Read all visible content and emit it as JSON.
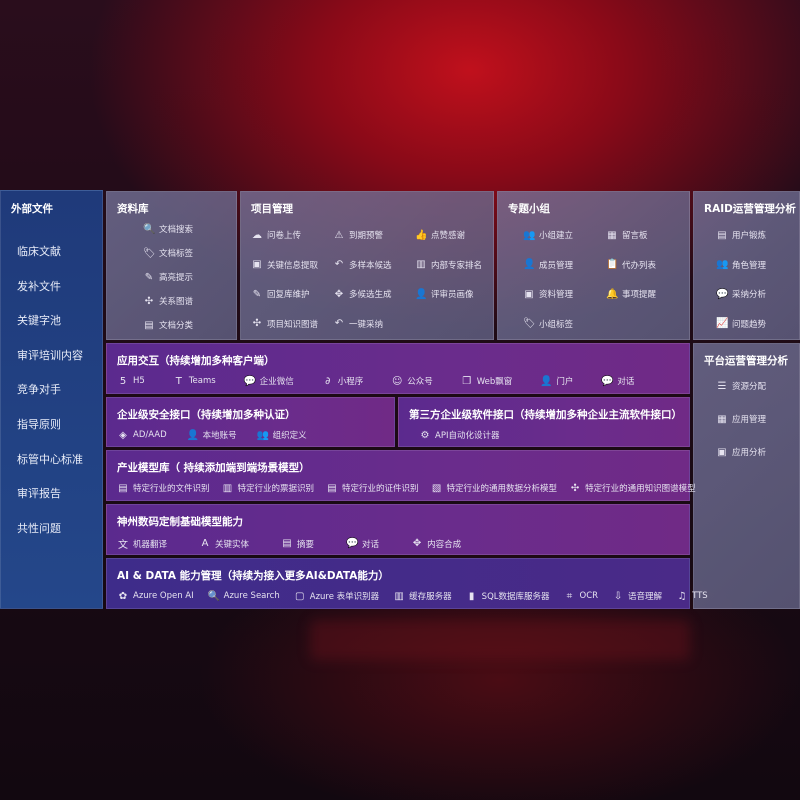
{
  "external": {
    "title": "外部文件",
    "items": [
      "临床文献",
      "发补文件",
      "关键字池",
      "审评培训内容",
      "竞争对手",
      "指导原则",
      "标管中心标准",
      "审评报告",
      "共性问题"
    ]
  },
  "library": {
    "title": "资料库",
    "items": [
      {
        "icon": "doc-search-icon",
        "label": "文档搜索"
      },
      {
        "icon": "tag-icon",
        "label": "文档标签"
      },
      {
        "icon": "highlight-pen-icon",
        "label": "高亮提示"
      },
      {
        "icon": "graph-icon",
        "label": "关系图谱"
      },
      {
        "icon": "doc-classify-icon",
        "label": "文档分类"
      }
    ]
  },
  "project": {
    "title": "项目管理",
    "items": [
      {
        "icon": "cloud-upload-icon",
        "label": "问卷上传"
      },
      {
        "icon": "alarm-icon",
        "label": "到期预警"
      },
      {
        "icon": "thumbs-up-icon",
        "label": "点赞感谢"
      },
      {
        "icon": "extract-icon",
        "label": "关键信息提取"
      },
      {
        "icon": "reply-icon",
        "label": "多样本候选"
      },
      {
        "icon": "ranking-icon",
        "label": "内部专家排名"
      },
      {
        "icon": "pen-icon",
        "label": "回复库维护"
      },
      {
        "icon": "puzzle-icon",
        "label": "多候选生成"
      },
      {
        "icon": "person-icon",
        "label": "评审员画像"
      },
      {
        "icon": "knowledge-graph-icon",
        "label": "项目知识图谱"
      },
      {
        "icon": "reply-icon",
        "label": "一键采纳"
      }
    ]
  },
  "group": {
    "title": "专题小组",
    "items": [
      {
        "icon": "group-icon",
        "label": "小组建立"
      },
      {
        "icon": "bbs-icon",
        "label": "留言板"
      },
      {
        "icon": "member-icon",
        "label": "成员管理"
      },
      {
        "icon": "clipboard-icon",
        "label": "代办列表"
      },
      {
        "icon": "folder-icon",
        "label": "资料管理"
      },
      {
        "icon": "bell-icon",
        "label": "事项提醒"
      },
      {
        "icon": "tag-icon",
        "label": "小组标签"
      }
    ]
  },
  "raid": {
    "title": "RAID运营管理分析",
    "items": [
      {
        "icon": "id-card-icon",
        "label": "用户锻炼"
      },
      {
        "icon": "users-icon",
        "label": "角色管理"
      },
      {
        "icon": "qa-icon",
        "label": "采纳分析"
      },
      {
        "icon": "trend-icon",
        "label": "问题趋势"
      }
    ]
  },
  "platform": {
    "title": "平台运营管理分析",
    "items": [
      {
        "icon": "checklist-icon",
        "label": "资源分配"
      },
      {
        "icon": "apps-icon",
        "label": "应用管理"
      },
      {
        "icon": "analysis-icon",
        "label": "应用分析"
      }
    ]
  },
  "interaction": {
    "title": "应用交互（持续增加多种客户端）",
    "items": [
      {
        "icon": "html5-icon",
        "label": "H5"
      },
      {
        "icon": "teams-icon",
        "label": "Teams"
      },
      {
        "icon": "wechat-icon",
        "label": "企业微信"
      },
      {
        "icon": "miniprogram-icon",
        "label": "小程序"
      },
      {
        "icon": "official-account-icon",
        "label": "公众号"
      },
      {
        "icon": "window-icon",
        "label": "Web飘窗"
      },
      {
        "icon": "portal-icon",
        "label": "门户"
      },
      {
        "icon": "chat-icon",
        "label": "对话"
      }
    ]
  },
  "security": {
    "title": "企业级安全接口（持续增加多种认证）",
    "items": [
      {
        "icon": "ad-icon",
        "label": "AD/AAD"
      },
      {
        "icon": "account-icon",
        "label": "本地账号"
      },
      {
        "icon": "org-icon",
        "label": "组织定义"
      }
    ]
  },
  "thirdparty": {
    "title": "第三方企业级软件接口（持续增加多种企业主流软件接口）",
    "items": [
      {
        "icon": "gear-icon",
        "label": "API自动化设计器"
      }
    ]
  },
  "industry": {
    "title": "产业模型库（ 持续添加端到端场景模型）",
    "items": [
      {
        "icon": "file-icon",
        "label": "特定行业的文件识别"
      },
      {
        "icon": "receipt-icon",
        "label": "特定行业的票据识别"
      },
      {
        "icon": "id-card-icon",
        "label": "特定行业的证件识别"
      },
      {
        "icon": "chart-icon",
        "label": "特定行业的通用数据分析模型"
      },
      {
        "icon": "knowledge-graph-icon",
        "label": "特定行业的通用知识图谱模型"
      }
    ]
  },
  "base": {
    "title": "神州数码定制基础模型能力",
    "items": [
      {
        "icon": "translate-icon",
        "label": "机器翻译"
      },
      {
        "icon": "entity-icon",
        "label": "关键实体"
      },
      {
        "icon": "summary-icon",
        "label": "摘要"
      },
      {
        "icon": "chat-icon",
        "label": "对话"
      },
      {
        "icon": "compose-icon",
        "label": "内容合成"
      }
    ]
  },
  "aidata": {
    "title": "AI & DATA 能力管理（持续为接入更多AI&DATA能力）",
    "items": [
      {
        "icon": "openai-icon",
        "label": "Azure Open AI"
      },
      {
        "icon": "search-icon",
        "label": "Azure Search"
      },
      {
        "icon": "form-icon",
        "label": "Azure 表单识别器"
      },
      {
        "icon": "cache-icon",
        "label": "缓存服务器"
      },
      {
        "icon": "sql-icon",
        "label": "SQL数据库服务器"
      },
      {
        "icon": "ocr-icon",
        "label": "OCR"
      },
      {
        "icon": "speech-icon",
        "label": "语音理解"
      },
      {
        "icon": "tts-icon",
        "label": "TTS"
      }
    ]
  }
}
